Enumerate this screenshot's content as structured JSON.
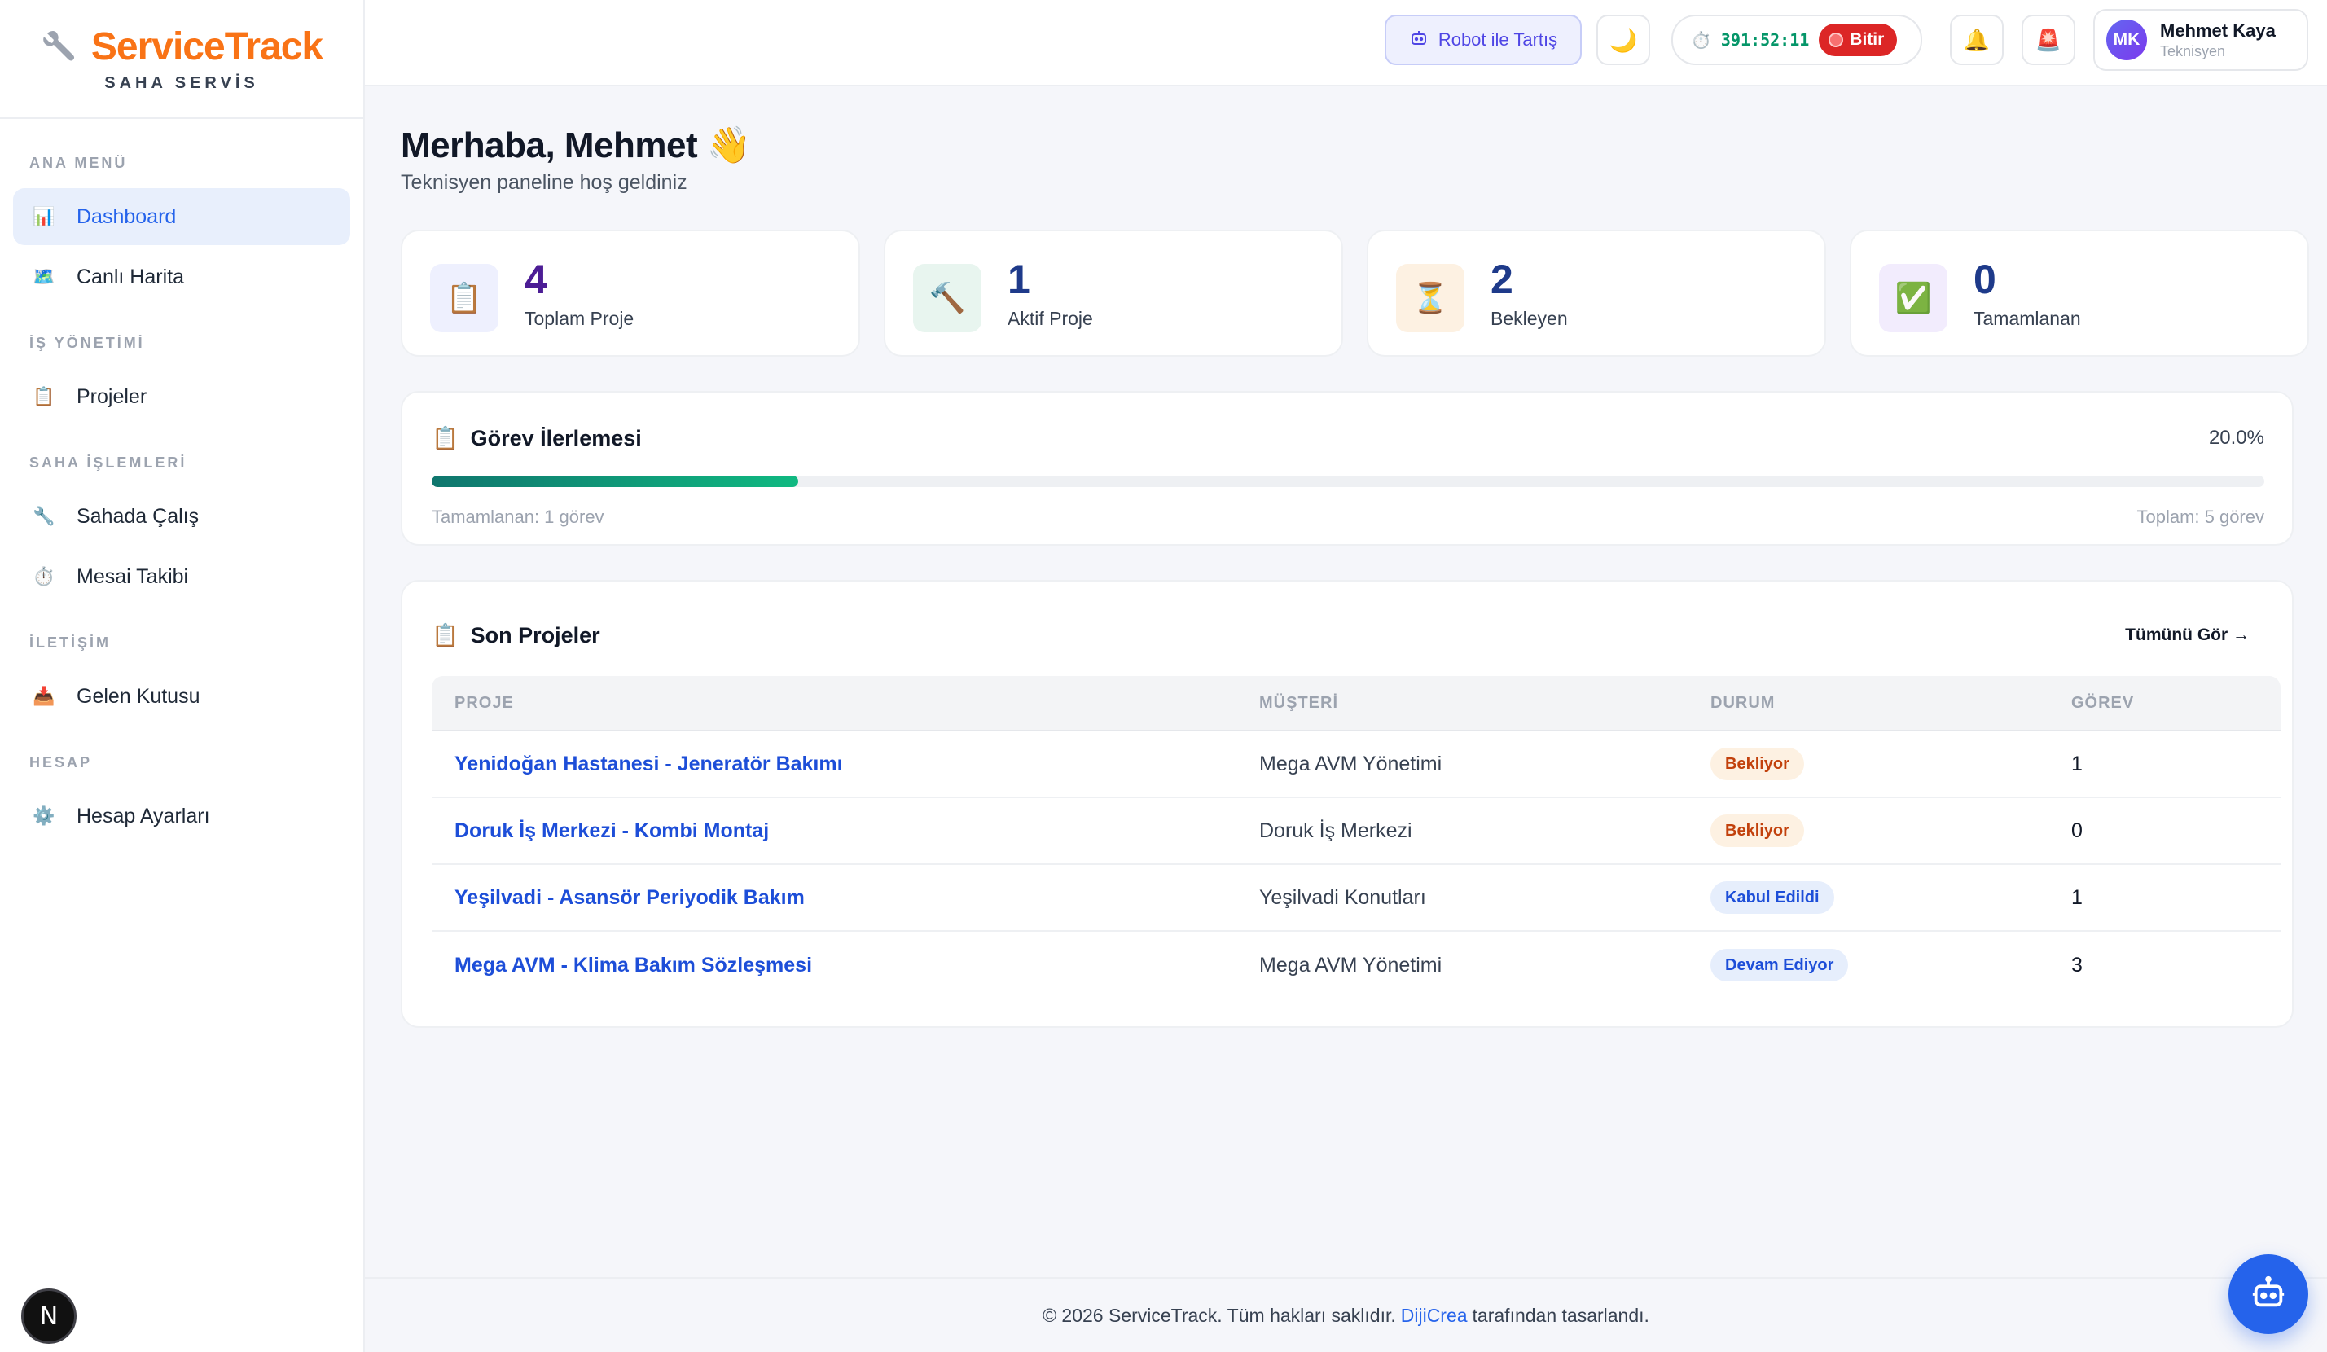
{
  "brand": {
    "title": "ServiceTrack",
    "subtitle": "SAHA SERVİS"
  },
  "sidebar": {
    "sections": [
      {
        "label": "ANA MENÜ",
        "items": [
          {
            "label": "Dashboard",
            "icon": "bar-chart-icon",
            "active": true
          },
          {
            "label": "Canlı Harita",
            "icon": "map-icon"
          }
        ]
      },
      {
        "label": "İŞ YÖNETİMİ",
        "items": [
          {
            "label": "Projeler",
            "icon": "clipboard-icon"
          }
        ]
      },
      {
        "label": "SAHA İŞLEMLERİ",
        "items": [
          {
            "label": "Sahada Çalış",
            "icon": "wrench-icon"
          },
          {
            "label": "Mesai Takibi",
            "icon": "stopwatch-icon"
          }
        ]
      },
      {
        "label": "İLETİŞİM",
        "items": [
          {
            "label": "Gelen Kutusu",
            "icon": "inbox-icon"
          }
        ]
      },
      {
        "label": "HESAP",
        "items": [
          {
            "label": "Hesap Ayarları",
            "icon": "gear-icon"
          }
        ]
      }
    ],
    "dev_badge": "N"
  },
  "topbar": {
    "robot_label": "Robot ile Tartış",
    "timer": "391:52:11",
    "stop_label": "Bitir",
    "user": {
      "initials": "MK",
      "name": "Mehmet Kaya",
      "role": "Teknisyen"
    }
  },
  "greeting": {
    "title": "Merhaba, Mehmet",
    "emoji": "👋",
    "subtitle": "Teknisyen paneline hoş geldiniz"
  },
  "stats": [
    {
      "value": "4",
      "label": "Toplam Proje",
      "icon": "📋",
      "color": "#4c1d95",
      "bg": "#eef0fe"
    },
    {
      "value": "1",
      "label": "Aktif Proje",
      "icon": "🔨",
      "color": "#1e3a8a",
      "bg": "#e8f5ef"
    },
    {
      "value": "2",
      "label": "Bekleyen",
      "icon": "⏳",
      "color": "#1e3a8a",
      "bg": "#fdf1e2"
    },
    {
      "value": "0",
      "label": "Tamamlanan",
      "icon": "✅",
      "color": "#1e3a8a",
      "bg": "#f2ecfd"
    }
  ],
  "progress": {
    "title": "Görev İlerlemesi",
    "percent_label": "20.0%",
    "percent": 20,
    "completed_label": "Tamamlanan: 1 görev",
    "total_label": "Toplam: 5 görev"
  },
  "projects": {
    "title": "Son Projeler",
    "view_all": "Tümünü Gör →",
    "columns": [
      "PROJE",
      "MÜŞTERİ",
      "DURUM",
      "GÖREV"
    ],
    "rows": [
      {
        "name": "Yenidoğan Hastanesi - Jeneratör Bakımı",
        "customer": "Mega AVM Yönetimi",
        "status": "Bekliyor",
        "status_type": "wait",
        "tasks": "1"
      },
      {
        "name": "Doruk İş Merkezi - Kombi Montaj",
        "customer": "Doruk İş Merkezi",
        "status": "Bekliyor",
        "status_type": "wait",
        "tasks": "0"
      },
      {
        "name": "Yeşilvadi - Asansör Periyodik Bakım",
        "customer": "Yeşilvadi Konutları",
        "status": "Kabul Edildi",
        "status_type": "acc",
        "tasks": "1"
      },
      {
        "name": "Mega AVM - Klima Bakım Sözleşmesi",
        "customer": "Mega AVM Yönetimi",
        "status": "Devam Ediyor",
        "status_type": "prog",
        "tasks": "3"
      }
    ]
  },
  "footer": {
    "prefix": "© 2026 ServiceTrack. Tüm hakları saklıdır.",
    "link": "DijiCrea",
    "suffix": "tarafından tasarlandı."
  }
}
